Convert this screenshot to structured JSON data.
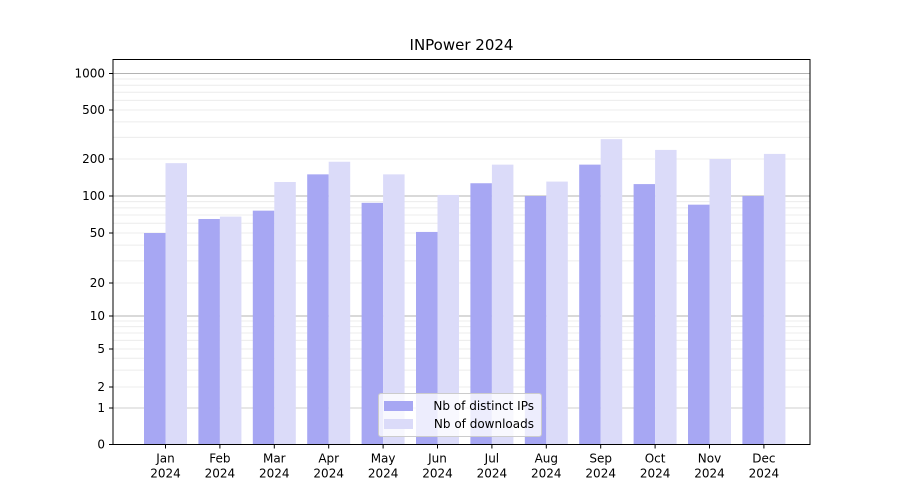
{
  "title": "INPower 2024",
  "chart_data": {
    "type": "bar",
    "title": "INPower 2024",
    "categories": [
      "Jan",
      "Feb",
      "Mar",
      "Apr",
      "May",
      "Jun",
      "Jul",
      "Aug",
      "Sep",
      "Oct",
      "Nov",
      "Dec"
    ],
    "year": "2024",
    "series": [
      {
        "name": "Nb of distinct IPs",
        "color": "#a7a7f3",
        "values": [
          50,
          65,
          76,
          150,
          88,
          51,
          127,
          100,
          180,
          125,
          85,
          100
        ]
      },
      {
        "name": "Nb of downloads",
        "color": "#dbdbf9",
        "values": [
          185,
          68,
          130,
          190,
          150,
          102,
          180,
          131,
          290,
          237,
          200,
          220
        ]
      }
    ],
    "yscale": "symlog",
    "ytick_labels": [
      1000,
      500,
      200,
      100,
      50,
      20,
      10,
      5,
      2,
      1,
      0
    ],
    "ylim": [
      0,
      1400
    ],
    "grid": true,
    "legend_position": "lower center",
    "colors": {
      "axis": "#000000",
      "grid_minor": "#ececec",
      "grid_major": "#b3b3b3",
      "grid_unit": "#cfcfcf",
      "text": "#000000"
    }
  }
}
